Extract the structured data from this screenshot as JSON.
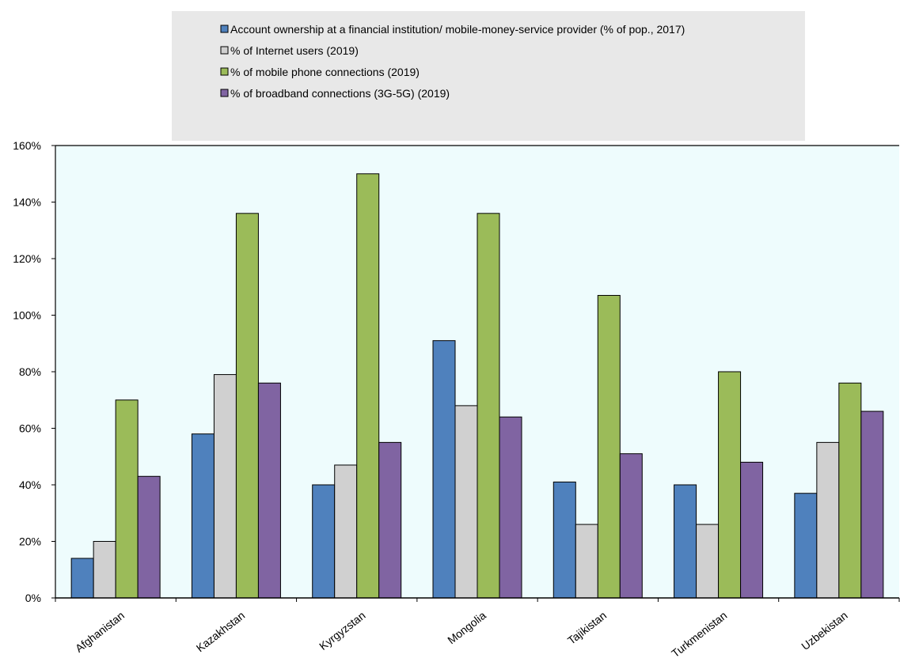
{
  "chart_data": {
    "type": "bar",
    "categories": [
      "Afghanistan",
      "Kazakhstan",
      "Kyrgyzstan",
      "Mongolia",
      "Tajikistan",
      "Turkmenistan",
      "Uzbekistan"
    ],
    "series": [
      {
        "name": "Account ownership at a financial institution/ mobile-money-service provider (% of pop., 2017)",
        "color": "#4f81bd",
        "values": [
          14,
          58,
          40,
          91,
          41,
          40,
          37
        ]
      },
      {
        "name": "% of Internet users (2019)",
        "color": "#d0d0d0",
        "values": [
          20,
          79,
          47,
          68,
          26,
          26,
          55
        ]
      },
      {
        "name": "% of mobile phone connections (2019)",
        "color": "#9bbb59",
        "values": [
          70,
          136,
          150,
          136,
          107,
          80,
          76
        ]
      },
      {
        "name": "% of broadband connections (3G-5G) (2019)",
        "color": "#8064a2",
        "values": [
          43,
          76,
          55,
          64,
          51,
          48,
          66
        ]
      }
    ],
    "yticks": [
      "0%",
      "20%",
      "40%",
      "60%",
      "80%",
      "100%",
      "120%",
      "140%",
      "160%"
    ],
    "ylim": [
      0,
      160
    ],
    "title": "",
    "xlabel": "",
    "ylabel": "",
    "legend_position": "top",
    "plot_background": "#eefcfd",
    "legend_background": "#e8e8e8"
  }
}
